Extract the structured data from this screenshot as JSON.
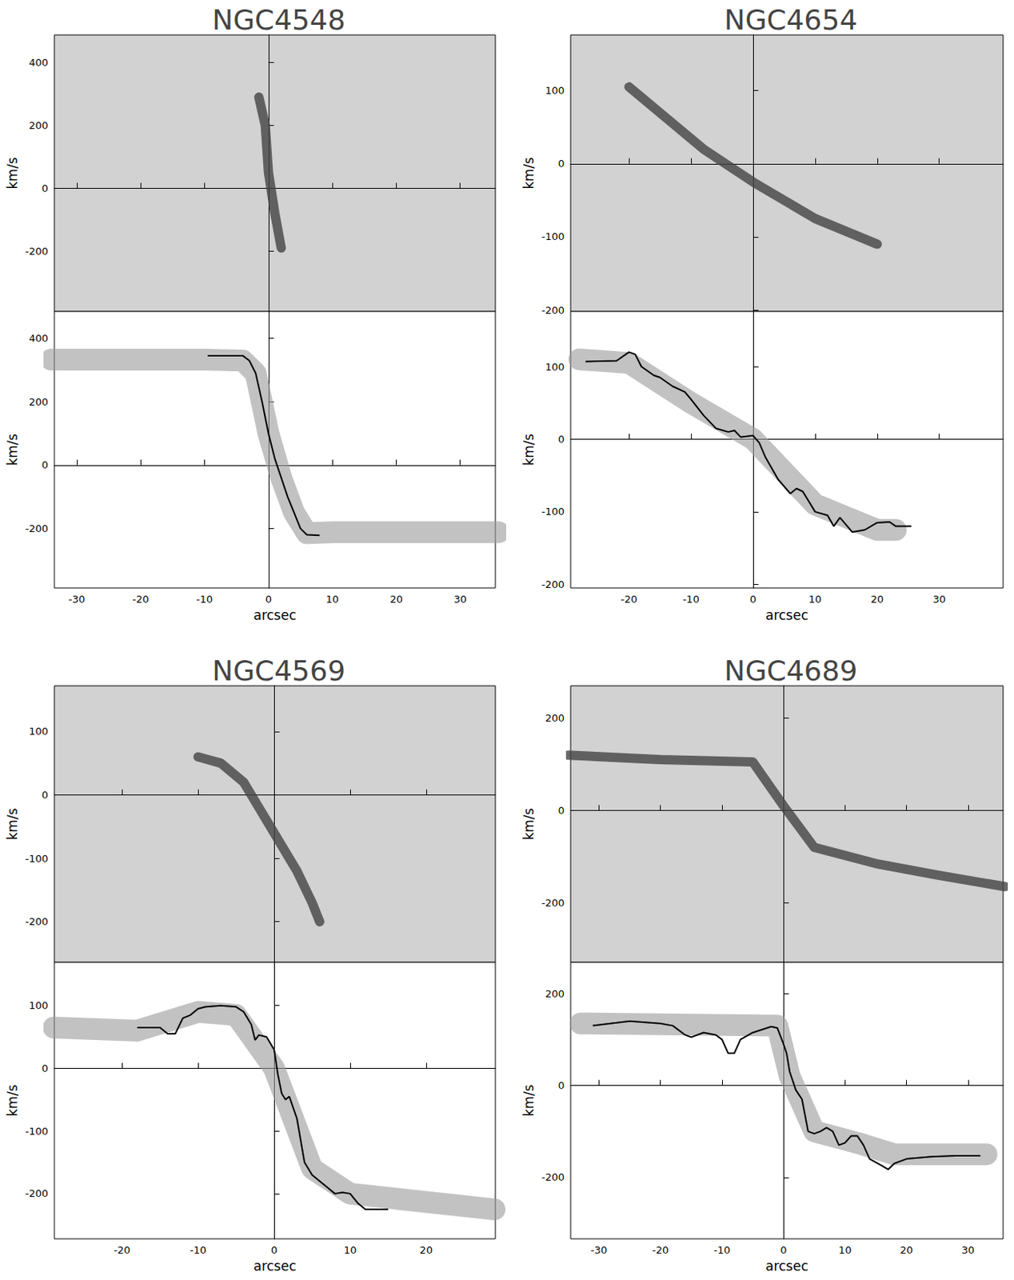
{
  "chart_data": [
    {
      "type": "line",
      "title": "NGC4548",
      "x_label": "arcsec",
      "y_label": "km/s",
      "xlim": [
        -33.5,
        35.5
      ],
      "xticks": [
        -30,
        -20,
        -10,
        0,
        10,
        20,
        30
      ],
      "panels": [
        {
          "tick_labels": "y",
          "ylim": [
            -392,
            488
          ],
          "yticks": [
            -200,
            0,
            200,
            400
          ],
          "series": [
            {
              "color": "#444444",
              "line_style": "band",
              "x": [
                -1.5,
                -0.5,
                0,
                1,
                2
              ],
              "values": [
                290,
                200,
                50,
                -80,
                -190
              ]
            }
          ]
        },
        {
          "ylim": [
            -388,
            485
          ],
          "yticks": [
            -200,
            0,
            200,
            400
          ],
          "series": [
            {
              "color": "#999999",
              "line_style": "band",
              "x": [
                -34,
                -10,
                -4,
                -2,
                0,
                2,
                4,
                6,
                10,
                36
              ],
              "values": [
                333,
                333,
                330,
                290,
                100,
                -40,
                -150,
                -215,
                -212,
                -212
              ]
            },
            {
              "color": "#000000",
              "line_style": "solid",
              "x": [
                -9.5,
                -4,
                -3,
                -2,
                -1,
                0,
                1,
                2,
                3,
                4,
                5,
                6,
                8
              ],
              "values": [
                345,
                345,
                330,
                290,
                200,
                100,
                20,
                -40,
                -100,
                -150,
                -200,
                -220,
                -222
              ]
            }
          ]
        }
      ]
    },
    {
      "type": "line",
      "title": "NGC4654",
      "x_label": "arcsec",
      "y_label": "km/s",
      "xlim": [
        -29.4,
        40.3
      ],
      "xticks": [
        -20,
        -10,
        0,
        10,
        20,
        30
      ],
      "panels": [
        {
          "tick_labels": "y",
          "ylim": [
            -202,
            176
          ],
          "yticks": [
            -200,
            -100,
            0,
            100
          ],
          "series": [
            {
              "color": "#444444",
              "line_style": "band",
              "x": [
                -20,
                -8,
                0,
                10,
                20
              ],
              "values": [
                105,
                20,
                -25,
                -75,
                -110
              ]
            }
          ]
        },
        {
          "ylim": [
            -205,
            176
          ],
          "yticks": [
            -200,
            -100,
            0,
            100
          ],
          "series": [
            {
              "color": "#999999",
              "line_style": "band",
              "x": [
                -28,
                -20,
                -10,
                0,
                10,
                20,
                23
              ],
              "values": [
                110,
                105,
                50,
                0,
                -90,
                -125,
                -125
              ]
            },
            {
              "color": "#000000",
              "line_style": "solid",
              "x": [
                -27,
                -22,
                -20,
                -19,
                -18,
                -16,
                -15,
                -13,
                -11,
                -10,
                -8,
                -6,
                -4,
                -3,
                -2,
                0,
                1,
                2,
                4,
                6,
                7,
                8,
                10,
                12,
                13,
                14,
                16,
                18,
                20,
                22,
                23,
                25.5
              ],
              "values": [
                107,
                108,
                120,
                117,
                100,
                88,
                85,
                73,
                65,
                55,
                33,
                15,
                10,
                12,
                3,
                5,
                -5,
                -25,
                -55,
                -75,
                -68,
                -72,
                -100,
                -105,
                -120,
                -108,
                -128,
                -125,
                -115,
                -114,
                -120,
                -120
              ]
            }
          ]
        }
      ]
    },
    {
      "type": "line",
      "title": "NGC4569",
      "x_label": "arcsec",
      "y_label": "km/s",
      "xlim": [
        -28.9,
        29.1
      ],
      "xticks": [
        -20,
        -10,
        0,
        10,
        20
      ],
      "panels": [
        {
          "tick_labels": "y",
          "ylim": [
            -264,
            172
          ],
          "yticks": [
            -200,
            -100,
            0,
            100
          ],
          "series": [
            {
              "color": "#444444",
              "line_style": "band",
              "x": [
                -10,
                -7,
                -4,
                0,
                3,
                5,
                6
              ],
              "values": [
                60,
                50,
                20,
                -60,
                -120,
                -170,
                -200
              ]
            }
          ]
        },
        {
          "ylim": [
            -272,
            169
          ],
          "yticks": [
            -200,
            -100,
            0,
            100
          ],
          "series": [
            {
              "color": "#999999",
              "line_style": "band",
              "x": [
                -29,
                -18,
                -10,
                -5,
                0,
                5,
                10,
                29
              ],
              "values": [
                65,
                60,
                90,
                85,
                0,
                -160,
                -200,
                -225
              ]
            },
            {
              "color": "#000000",
              "line_style": "solid",
              "x": [
                -18,
                -15,
                -14,
                -13,
                -12,
                -11,
                -10,
                -9,
                -7,
                -5,
                -4,
                -3,
                -2.5,
                -2,
                -1,
                0,
                0.5,
                1,
                1.5,
                2,
                3,
                4,
                5,
                7,
                8,
                9,
                10,
                11,
                12,
                15
              ],
              "values": [
                65,
                65,
                55,
                55,
                80,
                85,
                95,
                98,
                100,
                98,
                90,
                70,
                45,
                53,
                50,
                30,
                -10,
                -40,
                -50,
                -45,
                -80,
                -150,
                -170,
                -190,
                -200,
                -198,
                -200,
                -215,
                -225,
                -225
              ]
            }
          ]
        }
      ]
    },
    {
      "type": "line",
      "title": "NGC4689",
      "x_label": "arcsec",
      "y_label": "km/s",
      "xlim": [
        -34.6,
        35.7
      ],
      "xticks": [
        -30,
        -20,
        -10,
        0,
        10,
        20,
        30
      ],
      "panels": [
        {
          "tick_labels": "y",
          "ylim": [
            -329,
            270
          ],
          "yticks": [
            -200,
            0,
            200
          ],
          "series": [
            {
              "color": "#444444",
              "line_style": "band",
              "x": [
                -35,
                -20,
                -5,
                0,
                5,
                15,
                25,
                36
              ],
              "values": [
                120,
                110,
                105,
                10,
                -80,
                -115,
                -140,
                -165
              ]
            }
          ]
        },
        {
          "ylim": [
            -334,
            268
          ],
          "yticks": [
            -200,
            0,
            200
          ],
          "series": [
            {
              "color": "#999999",
              "line_style": "band",
              "x": [
                -33,
                -1,
                1,
                5,
                12,
                18,
                33
              ],
              "values": [
                135,
                130,
                20,
                -100,
                -125,
                -150,
                -150
              ]
            },
            {
              "color": "#000000",
              "line_style": "solid",
              "x": [
                -31,
                -25,
                -20,
                -18,
                -16,
                -15,
                -13,
                -11,
                -10,
                -9,
                -8,
                -7,
                -5,
                -2,
                -1,
                0,
                0.5,
                1,
                2,
                3,
                4,
                5,
                6,
                7,
                8,
                9,
                10,
                11,
                12,
                13,
                14,
                16,
                17,
                18,
                20,
                24,
                28,
                32
              ],
              "values": [
                130,
                140,
                135,
                130,
                110,
                105,
                115,
                110,
                100,
                70,
                70,
                100,
                115,
                128,
                125,
                90,
                70,
                30,
                -10,
                -30,
                -100,
                -105,
                -100,
                -92,
                -100,
                -130,
                -125,
                -110,
                -110,
                -130,
                -160,
                -175,
                -183,
                -170,
                -160,
                -155,
                -153,
                -153
              ]
            }
          ]
        }
      ]
    }
  ]
}
